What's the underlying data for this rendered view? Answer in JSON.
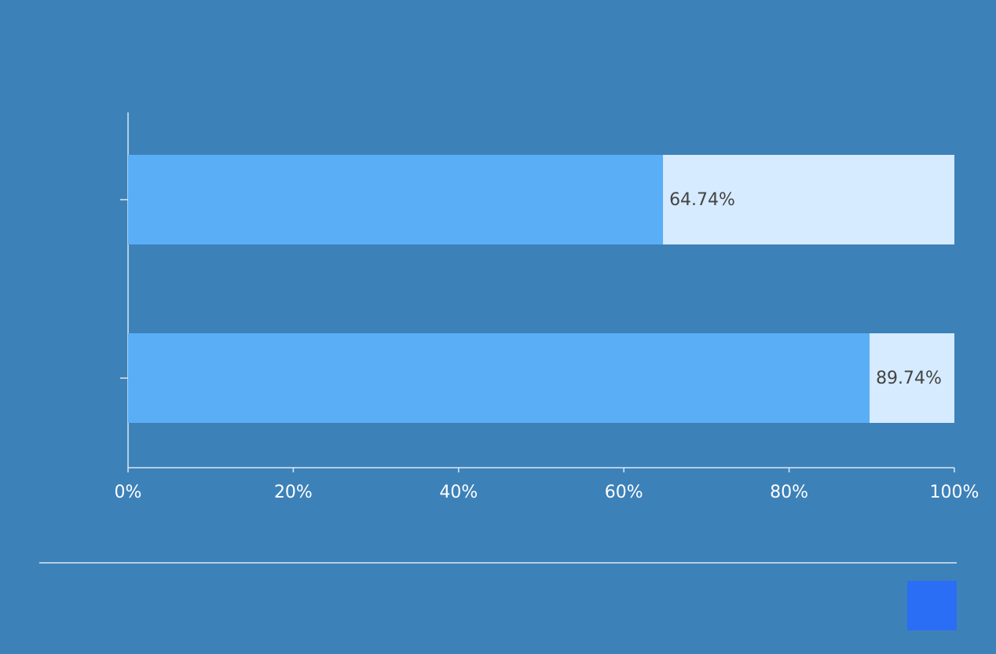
{
  "chart_data": {
    "type": "bar",
    "orientation": "horizontal",
    "categories": [
      null,
      null
    ],
    "values": [
      64.74,
      89.74
    ],
    "value_labels": [
      "64.74%",
      "89.74%"
    ],
    "color": "#5aaef5",
    "track_color": "#d6ebff",
    "xlim": [
      0,
      100
    ],
    "xticks": [
      {
        "value": 0,
        "label": "0%"
      },
      {
        "value": 20,
        "label": "20%"
      },
      {
        "value": 40,
        "label": "40%"
      },
      {
        "value": 60,
        "label": "60%"
      },
      {
        "value": 80,
        "label": "80%"
      },
      {
        "value": 100,
        "label": "100%"
      }
    ],
    "grid": false
  }
}
